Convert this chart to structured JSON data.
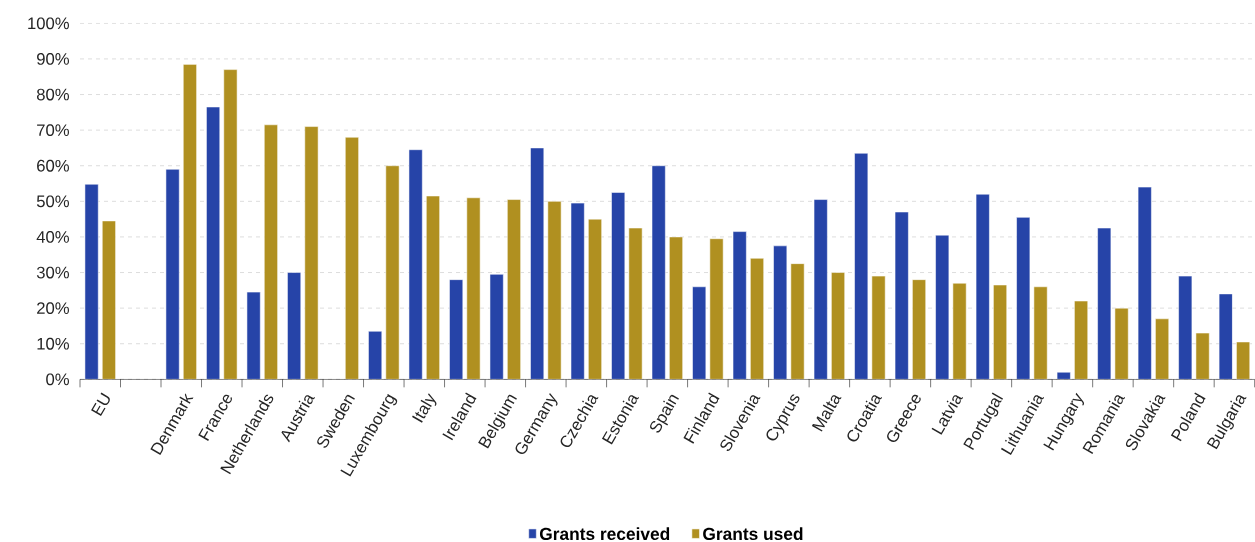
{
  "chart_data": {
    "type": "bar",
    "categories": [
      "EU",
      null,
      "Denmark",
      "France",
      "Netherlands",
      "Austria",
      "Sweden",
      "Luxembourg",
      "Italy",
      "Ireland",
      "Belgium",
      "Germany",
      "Czechia",
      "Estonia",
      "Spain",
      "Finland",
      "Slovenia",
      "Cyprus",
      "Malta",
      "Croatia",
      "Greece",
      "Latvia",
      "Portugal",
      "Lithuania",
      "Hungary",
      "Romania",
      "Slovakia",
      "Poland",
      "Bulgaria"
    ],
    "series": [
      {
        "name": "Grants received",
        "color": "#2644a8",
        "values": [
          54.8,
          null,
          59,
          76.5,
          24.5,
          30,
          null,
          13.5,
          64.5,
          28,
          29.5,
          65,
          49.5,
          52.5,
          60,
          26,
          41.5,
          37.5,
          50.5,
          63.5,
          47,
          40.5,
          52,
          45.5,
          2,
          42.5,
          54,
          29,
          24
        ]
      },
      {
        "name": "Grants used",
        "color": "#b09020",
        "values": [
          44.5,
          null,
          88.5,
          87,
          71.5,
          71,
          68,
          60,
          51.5,
          51,
          50.5,
          50,
          45,
          42.5,
          40,
          39.5,
          34,
          32.5,
          30,
          29,
          28,
          27,
          26.5,
          26,
          22,
          20,
          17,
          13,
          10.5
        ]
      }
    ],
    "ylim": [
      0,
      100
    ],
    "yticks": [
      {
        "value": 0,
        "label": "0%"
      },
      {
        "value": 10,
        "label": "10%"
      },
      {
        "value": 20,
        "label": "20%"
      },
      {
        "value": 30,
        "label": "30%"
      },
      {
        "value": 40,
        "label": "40%"
      },
      {
        "value": 50,
        "label": "50%"
      },
      {
        "value": 60,
        "label": "60%"
      },
      {
        "value": 70,
        "label": "70%"
      },
      {
        "value": 80,
        "label": "80%"
      },
      {
        "value": 90,
        "label": "90%"
      },
      {
        "value": 100,
        "label": "100%"
      }
    ],
    "grid": "y",
    "legend": "bottom"
  }
}
